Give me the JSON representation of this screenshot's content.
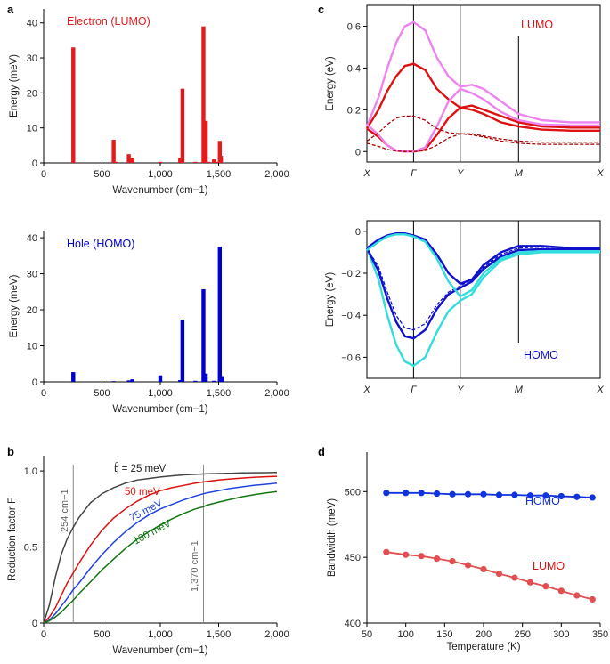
{
  "panels": {
    "a": "a",
    "b": "b",
    "c": "c",
    "d": "d"
  },
  "chart_data": [
    {
      "id": "a-top",
      "type": "bar",
      "title": "Electron (LUMO)",
      "xlabel": "Wavenumber (cm−1)",
      "ylabel": "Energy (meV)",
      "xlim": [
        0,
        2000
      ],
      "ylim": [
        0,
        44
      ],
      "xticks": [
        0,
        500,
        1000,
        1500,
        2000
      ],
      "xtick_labels": [
        "0",
        "500",
        "1,000",
        "1,500",
        "2,000"
      ],
      "yticks": [
        0,
        10,
        20,
        30,
        40
      ],
      "ytick_labels": [
        "0",
        "10",
        "20",
        "30",
        "40"
      ],
      "color": "#e41a1c",
      "x": [
        254,
        600,
        620,
        730,
        760,
        1000,
        1170,
        1190,
        1300,
        1370,
        1390,
        1410,
        1460,
        1490,
        1510,
        1520
      ],
      "values": [
        33,
        6.6,
        0.3,
        2.5,
        1.5,
        0.3,
        1.5,
        21.2,
        0.3,
        39,
        12,
        0.3,
        1.0,
        0.3,
        6.3,
        2.0
      ]
    },
    {
      "id": "a-bottom",
      "type": "bar",
      "title": "Hole (HOMO)",
      "xlabel": "Wavenumber (cm−1)",
      "ylabel": "Energy (meV)",
      "xlim": [
        0,
        2000
      ],
      "ylim": [
        0,
        42
      ],
      "xticks": [
        0,
        500,
        1000,
        1500,
        2000
      ],
      "xtick_labels": [
        "0",
        "500",
        "1,000",
        "1,500",
        "2,000"
      ],
      "yticks": [
        0,
        10,
        20,
        30,
        40
      ],
      "ytick_labels": [
        "0",
        "10",
        "20",
        "30",
        "40"
      ],
      "color": "#0000cc",
      "x": [
        254,
        600,
        730,
        760,
        1000,
        1170,
        1190,
        1300,
        1370,
        1390,
        1460,
        1510,
        1530
      ],
      "values": [
        2.7,
        0.2,
        0.4,
        0.7,
        1.8,
        0.5,
        17.3,
        0.3,
        25.7,
        2.3,
        0.3,
        37.5,
        1.6
      ]
    },
    {
      "id": "b",
      "type": "line",
      "xlabel": "Wavenumber (cm−1)",
      "ylabel": "Reduction factor F",
      "xlim": [
        0,
        2000
      ],
      "ylim": [
        0,
        1.1
      ],
      "xticks": [
        0,
        500,
        1000,
        1500,
        2000
      ],
      "xtick_labels": [
        "0",
        "500",
        "1,000",
        "1,500",
        "2,000"
      ],
      "yticks": [
        0,
        0.5,
        1.0
      ],
      "ytick_labels": [
        "0",
        "0.5",
        "1.0"
      ],
      "x": [
        0,
        50,
        100,
        150,
        200,
        254,
        300,
        400,
        500,
        600,
        700,
        800,
        900,
        1000,
        1100,
        1200,
        1300,
        1370,
        1400,
        1500,
        1600,
        1700,
        1800,
        1900,
        2000
      ],
      "series": [
        {
          "name": "t_i^0 = 25 meV",
          "color": "#444444",
          "values": [
            0,
            0.12,
            0.3,
            0.45,
            0.55,
            0.63,
            0.69,
            0.79,
            0.85,
            0.89,
            0.92,
            0.94,
            0.95,
            0.96,
            0.968,
            0.974,
            0.978,
            0.98,
            0.981,
            0.983,
            0.985,
            0.987,
            0.988,
            0.989,
            0.99
          ]
        },
        {
          "name": "50 meV",
          "color": "#dd1111",
          "values": [
            0,
            0.04,
            0.1,
            0.18,
            0.26,
            0.33,
            0.39,
            0.51,
            0.61,
            0.69,
            0.75,
            0.8,
            0.84,
            0.87,
            0.89,
            0.905,
            0.92,
            0.928,
            0.931,
            0.94,
            0.947,
            0.953,
            0.958,
            0.962,
            0.965
          ]
        },
        {
          "name": "75 meV",
          "color": "#2244dd",
          "values": [
            0,
            0.02,
            0.06,
            0.11,
            0.16,
            0.22,
            0.26,
            0.36,
            0.45,
            0.53,
            0.6,
            0.66,
            0.71,
            0.75,
            0.78,
            0.81,
            0.835,
            0.85,
            0.856,
            0.87,
            0.885,
            0.895,
            0.905,
            0.912,
            0.92
          ]
        },
        {
          "name": "100 meV",
          "color": "#117711",
          "values": [
            0,
            0.015,
            0.04,
            0.07,
            0.11,
            0.15,
            0.19,
            0.27,
            0.35,
            0.42,
            0.49,
            0.55,
            0.6,
            0.645,
            0.685,
            0.72,
            0.75,
            0.765,
            0.775,
            0.795,
            0.813,
            0.83,
            0.843,
            0.855,
            0.865
          ]
        }
      ],
      "vlines": [
        254,
        1370
      ],
      "annotations": [
        "254 cm−1",
        "1,370 cm−1"
      ],
      "curve_labels": [
        "t",
        "i",
        "0",
        " = 25 meV",
        "50 meV",
        "75 meV",
        "100 meV"
      ]
    },
    {
      "id": "c-top",
      "type": "line",
      "title": "LUMO",
      "ylabel": "Energy (eV)",
      "ylim": [
        -0.05,
        0.7
      ],
      "yticks": [
        0,
        0.2,
        0.4,
        0.6
      ],
      "ytick_labels": [
        "0",
        "0.2",
        "0.4",
        "0.6"
      ],
      "kpoints": [
        "X",
        "Γ",
        "Y",
        "M",
        "X"
      ],
      "x": [
        0,
        0.2,
        0.35,
        0.5,
        0.65,
        0.8,
        1.0,
        1.2,
        1.4,
        1.6,
        1.8,
        2.0,
        2.3,
        2.6,
        3.0,
        3.5,
        4.0
      ],
      "series": [
        {
          "name": "violet upper",
          "color": "#ee82ee",
          "values": [
            0.12,
            0.26,
            0.4,
            0.52,
            0.6,
            0.62,
            0.58,
            0.45,
            0.36,
            0.31,
            0.32,
            0.3,
            0.24,
            0.18,
            0.15,
            0.14,
            0.14
          ]
        },
        {
          "name": "red upper",
          "color": "#dd1111",
          "values": [
            0.11,
            0.2,
            0.29,
            0.36,
            0.41,
            0.42,
            0.39,
            0.3,
            0.25,
            0.21,
            0.22,
            0.2,
            0.17,
            0.14,
            0.12,
            0.115,
            0.115
          ]
        },
        {
          "name": "red lower",
          "color": "#dd1111",
          "values": [
            0.11,
            0.07,
            0.03,
            0.005,
            0.0,
            0.0,
            0.01,
            0.08,
            0.16,
            0.21,
            0.2,
            0.18,
            0.14,
            0.12,
            0.105,
            0.1,
            0.1
          ]
        },
        {
          "name": "violet lower",
          "color": "#ee82ee",
          "values": [
            0.13,
            0.08,
            0.03,
            0.005,
            0.0,
            0.0,
            0.02,
            0.12,
            0.24,
            0.3,
            0.28,
            0.25,
            0.19,
            0.15,
            0.13,
            0.125,
            0.125
          ]
        },
        {
          "name": "dashed upper",
          "color": "#aa0000",
          "dashed": true,
          "values": [
            0.05,
            0.09,
            0.13,
            0.16,
            0.17,
            0.17,
            0.15,
            0.11,
            0.09,
            0.085,
            0.085,
            0.075,
            0.06,
            0.05,
            0.045,
            0.045,
            0.045
          ]
        },
        {
          "name": "dashed lower",
          "color": "#aa0000",
          "dashed": true,
          "values": [
            0.04,
            0.025,
            0.01,
            0.003,
            0.0,
            0.0,
            0.005,
            0.03,
            0.065,
            0.085,
            0.08,
            0.07,
            0.05,
            0.04,
            0.035,
            0.035,
            0.035
          ]
        }
      ]
    },
    {
      "id": "c-bottom",
      "type": "line",
      "title": "HOMO",
      "ylabel": "Energy (eV)",
      "ylim": [
        -0.7,
        0.05
      ],
      "yticks": [
        0,
        -0.2,
        -0.4,
        -0.6
      ],
      "ytick_labels": [
        "0",
        "−0.2",
        "−0.4",
        "−0.6"
      ],
      "kpoints": [
        "X",
        "Γ",
        "Y",
        "M",
        "X"
      ],
      "x": [
        0,
        0.2,
        0.35,
        0.5,
        0.65,
        0.8,
        1.0,
        1.2,
        1.4,
        1.6,
        1.8,
        2.0,
        2.3,
        2.6,
        3.0,
        3.5,
        4.0
      ],
      "series": [
        {
          "name": "cyan lower",
          "color": "#33dddd",
          "values": [
            -0.08,
            -0.23,
            -0.4,
            -0.54,
            -0.62,
            -0.64,
            -0.6,
            -0.48,
            -0.38,
            -0.33,
            -0.3,
            -0.22,
            -0.14,
            -0.11,
            -0.1,
            -0.1,
            -0.1
          ]
        },
        {
          "name": "blue lower",
          "color": "#1111cc",
          "values": [
            -0.08,
            -0.19,
            -0.32,
            -0.43,
            -0.5,
            -0.51,
            -0.47,
            -0.37,
            -0.3,
            -0.27,
            -0.24,
            -0.18,
            -0.12,
            -0.09,
            -0.085,
            -0.085,
            -0.085
          ]
        },
        {
          "name": "dashed lower",
          "color": "#1111cc",
          "dashed": true,
          "values": [
            -0.08,
            -0.17,
            -0.29,
            -0.4,
            -0.46,
            -0.47,
            -0.44,
            -0.35,
            -0.29,
            -0.26,
            -0.23,
            -0.17,
            -0.11,
            -0.08,
            -0.075,
            -0.08,
            -0.08
          ]
        },
        {
          "name": "blue upper",
          "color": "#1111cc",
          "values": [
            -0.08,
            -0.04,
            -0.02,
            -0.01,
            -0.01,
            -0.02,
            -0.04,
            -0.11,
            -0.2,
            -0.25,
            -0.23,
            -0.16,
            -0.1,
            -0.07,
            -0.07,
            -0.08,
            -0.08
          ]
        },
        {
          "name": "cyan upper",
          "color": "#33dddd",
          "values": [
            -0.09,
            -0.05,
            -0.025,
            -0.015,
            -0.015,
            -0.025,
            -0.05,
            -0.13,
            -0.24,
            -0.31,
            -0.28,
            -0.2,
            -0.13,
            -0.1,
            -0.095,
            -0.095,
            -0.095
          ]
        }
      ]
    },
    {
      "id": "d",
      "type": "line",
      "xlabel": "Temperature (K)",
      "ylabel": "Bandwidth (meV)",
      "xlim": [
        50,
        350
      ],
      "ylim": [
        400,
        530
      ],
      "xticks": [
        50,
        100,
        150,
        200,
        250,
        300,
        350
      ],
      "xtick_labels": [
        "50",
        "100",
        "150",
        "200",
        "250",
        "300",
        "350"
      ],
      "yticks": [
        400,
        450,
        500
      ],
      "ytick_labels": [
        "400",
        "450",
        "500"
      ],
      "x": [
        75,
        100,
        120,
        140,
        160,
        180,
        200,
        220,
        240,
        260,
        280,
        300,
        320,
        340
      ],
      "series": [
        {
          "name": "HOMO",
          "color": "#1133dd",
          "values": [
            499,
            499,
            499,
            498.5,
            498,
            498,
            498,
            497.5,
            497.5,
            497,
            497,
            496.5,
            496,
            495.5
          ]
        },
        {
          "name": "LUMO",
          "color": "#e05050",
          "values": [
            454,
            452,
            451,
            449,
            447,
            444,
            441,
            437.5,
            434.5,
            431,
            428,
            424.5,
            421,
            418
          ]
        }
      ]
    }
  ]
}
